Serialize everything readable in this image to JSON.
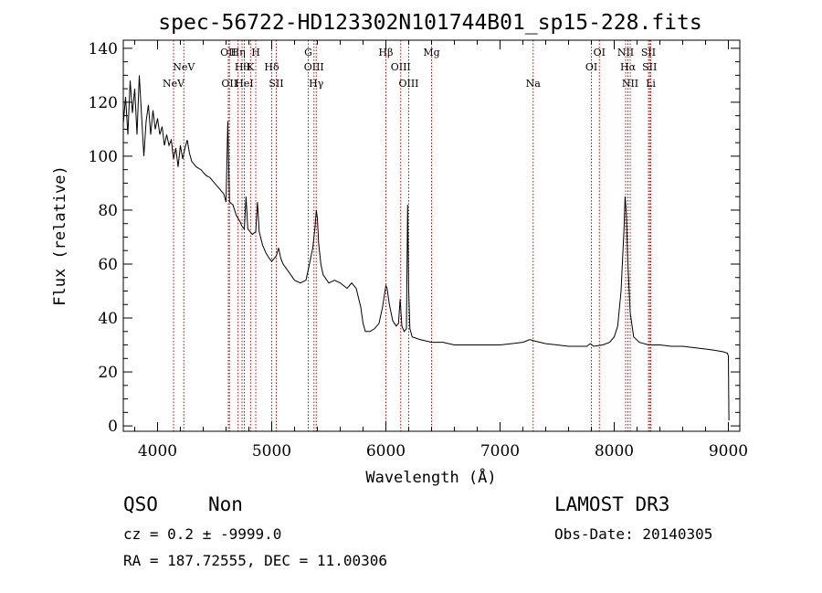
{
  "chart_data": {
    "type": "line",
    "title": "spec-56722-HD123302N101744B01_sp15-228.fits",
    "xlabel": "Wavelength (Å)",
    "ylabel": "Flux (relative)",
    "xlim": [
      3700,
      9100
    ],
    "ylim": [
      -2,
      143
    ],
    "x_ticks": [
      4000,
      5000,
      6000,
      7000,
      8000,
      9000
    ],
    "y_ticks": [
      0,
      20,
      40,
      60,
      80,
      100,
      120,
      140
    ],
    "series": [
      {
        "name": "spectrum",
        "points": [
          [
            3700,
            112
          ],
          [
            3720,
            122
          ],
          [
            3740,
            108
          ],
          [
            3760,
            128
          ],
          [
            3780,
            116
          ],
          [
            3800,
            125
          ],
          [
            3820,
            108
          ],
          [
            3840,
            130
          ],
          [
            3860,
            115
          ],
          [
            3880,
            100
          ],
          [
            3900,
            113
          ],
          [
            3920,
            119
          ],
          [
            3940,
            108
          ],
          [
            3960,
            117
          ],
          [
            3980,
            110
          ],
          [
            4000,
            114
          ],
          [
            4020,
            108
          ],
          [
            4040,
            111
          ],
          [
            4060,
            104
          ],
          [
            4080,
            108
          ],
          [
            4100,
            104
          ],
          [
            4120,
            106
          ],
          [
            4140,
            99
          ],
          [
            4160,
            103
          ],
          [
            4180,
            96
          ],
          [
            4200,
            104
          ],
          [
            4220,
            99
          ],
          [
            4240,
            103
          ],
          [
            4260,
            106
          ],
          [
            4280,
            101
          ],
          [
            4300,
            98
          ],
          [
            4340,
            96
          ],
          [
            4380,
            95
          ],
          [
            4420,
            93
          ],
          [
            4460,
            92
          ],
          [
            4500,
            90
          ],
          [
            4540,
            88
          ],
          [
            4580,
            86
          ],
          [
            4600,
            83
          ],
          [
            4615,
            113
          ],
          [
            4630,
            83
          ],
          [
            4660,
            82
          ],
          [
            4690,
            78
          ],
          [
            4720,
            76
          ],
          [
            4740,
            74
          ],
          [
            4760,
            73
          ],
          [
            4775,
            85
          ],
          [
            4790,
            73
          ],
          [
            4810,
            72
          ],
          [
            4830,
            71
          ],
          [
            4860,
            72
          ],
          [
            4875,
            83
          ],
          [
            4890,
            72
          ],
          [
            4920,
            67
          ],
          [
            4950,
            64
          ],
          [
            4980,
            62
          ],
          [
            5000,
            61
          ],
          [
            5020,
            62
          ],
          [
            5040,
            63
          ],
          [
            5060,
            66
          ],
          [
            5080,
            62
          ],
          [
            5100,
            60
          ],
          [
            5150,
            57
          ],
          [
            5200,
            54
          ],
          [
            5250,
            53
          ],
          [
            5300,
            54
          ],
          [
            5330,
            60
          ],
          [
            5360,
            66
          ],
          [
            5380,
            74
          ],
          [
            5390,
            80
          ],
          [
            5400,
            77
          ],
          [
            5410,
            68
          ],
          [
            5430,
            60
          ],
          [
            5450,
            56
          ],
          [
            5500,
            53
          ],
          [
            5550,
            54
          ],
          [
            5600,
            53
          ],
          [
            5630,
            52
          ],
          [
            5660,
            51
          ],
          [
            5700,
            53
          ],
          [
            5740,
            51
          ],
          [
            5780,
            44
          ],
          [
            5800,
            38
          ],
          [
            5820,
            35
          ],
          [
            5860,
            35
          ],
          [
            5900,
            36
          ],
          [
            5940,
            38
          ],
          [
            5970,
            44
          ],
          [
            6000,
            52
          ],
          [
            6010,
            51
          ],
          [
            6030,
            45
          ],
          [
            6060,
            39
          ],
          [
            6090,
            37
          ],
          [
            6110,
            38
          ],
          [
            6125,
            47
          ],
          [
            6140,
            37
          ],
          [
            6160,
            35
          ],
          [
            6180,
            36
          ],
          [
            6190,
            82
          ],
          [
            6200,
            50
          ],
          [
            6210,
            36
          ],
          [
            6230,
            33
          ],
          [
            6300,
            32
          ],
          [
            6400,
            31
          ],
          [
            6500,
            31
          ],
          [
            6600,
            30
          ],
          [
            6700,
            30
          ],
          [
            6800,
            30
          ],
          [
            6900,
            30
          ],
          [
            7000,
            30
          ],
          [
            7100,
            30.5
          ],
          [
            7200,
            31
          ],
          [
            7260,
            32
          ],
          [
            7300,
            31.5
          ],
          [
            7400,
            30.5
          ],
          [
            7500,
            30
          ],
          [
            7600,
            29.5
          ],
          [
            7700,
            29.5
          ],
          [
            7760,
            29.5
          ],
          [
            7790,
            30.5
          ],
          [
            7820,
            29.5
          ],
          [
            7900,
            30
          ],
          [
            7960,
            31
          ],
          [
            8000,
            33
          ],
          [
            8030,
            37
          ],
          [
            8060,
            50
          ],
          [
            8085,
            72
          ],
          [
            8095,
            85
          ],
          [
            8105,
            80
          ],
          [
            8120,
            60
          ],
          [
            8140,
            42
          ],
          [
            8170,
            33
          ],
          [
            8220,
            31
          ],
          [
            8300,
            30
          ],
          [
            8400,
            30
          ],
          [
            8500,
            29.5
          ],
          [
            8600,
            29.5
          ],
          [
            8700,
            29
          ],
          [
            8800,
            28.5
          ],
          [
            8880,
            28
          ],
          [
            8950,
            27.5
          ],
          [
            8990,
            27
          ],
          [
            9000,
            26
          ],
          [
            9005,
            2
          ]
        ]
      }
    ],
    "line_markers": [
      {
        "wavelength": 4140,
        "label": "NeV",
        "row": 3
      },
      {
        "wavelength": 4230,
        "label": "NeV",
        "row": 2
      },
      {
        "wavelength": 4620,
        "label": "OII",
        "row": 1
      },
      {
        "wavelength": 4630,
        "label": "OII",
        "row": 3
      },
      {
        "wavelength": 4705,
        "label": "Hη",
        "row": 1
      },
      {
        "wavelength": 4740,
        "label": "Hθ",
        "row": 2
      },
      {
        "wavelength": 4760,
        "label": "HeI",
        "row": 3
      },
      {
        "wavelength": 4815,
        "label": "K",
        "row": 2
      },
      {
        "wavelength": 4860,
        "label": "H",
        "row": 1
      },
      {
        "wavelength": 5000,
        "label": "Hδ",
        "row": 2
      },
      {
        "wavelength": 5040,
        "label": "SII",
        "row": 3
      },
      {
        "wavelength": 5320,
        "label": "G",
        "row": 1
      },
      {
        "wavelength": 5370,
        "label": "OIII",
        "row": 2
      },
      {
        "wavelength": 5390,
        "label": "Hγ",
        "row": 3
      },
      {
        "wavelength": 6000,
        "label": "Hβ",
        "row": 1
      },
      {
        "wavelength": 6130,
        "label": "OIII",
        "row": 2
      },
      {
        "wavelength": 6200,
        "label": "OIII",
        "row": 3
      },
      {
        "wavelength": 6400,
        "label": "Mg",
        "row": 1
      },
      {
        "wavelength": 7290,
        "label": "Na",
        "row": 3
      },
      {
        "wavelength": 7800,
        "label": "OI",
        "row": 2
      },
      {
        "wavelength": 7870,
        "label": "OI",
        "row": 1
      },
      {
        "wavelength": 8100,
        "label": "NII",
        "row": 1
      },
      {
        "wavelength": 8120,
        "label": "Hα",
        "row": 2
      },
      {
        "wavelength": 8140,
        "label": "NII",
        "row": 3
      },
      {
        "wavelength": 8300,
        "label": "SII",
        "row": 1
      },
      {
        "wavelength": 8310,
        "label": "SII",
        "row": 2
      },
      {
        "wavelength": 8320,
        "label": "Li",
        "row": 3
      }
    ],
    "marker_color": "#cc0000",
    "line_color": "#000000"
  },
  "info": {
    "class": "QSO",
    "subclass": "Non",
    "survey": "LAMOST DR3",
    "cz": "cz = 0.2 ± -9999.0",
    "obs_date": "Obs-Date: 20140305",
    "coords": "RA = 187.72555, DEC =  11.00306"
  }
}
